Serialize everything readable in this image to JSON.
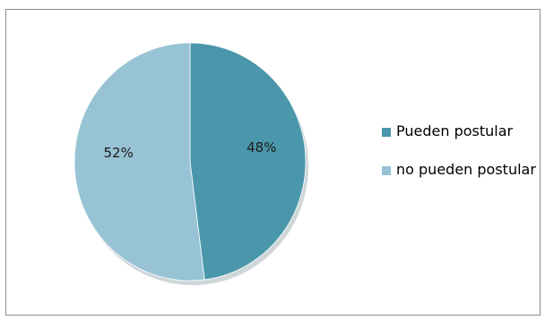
{
  "chart_data": {
    "type": "pie",
    "categories": [
      "Pueden postular",
      "no pueden postular"
    ],
    "values": [
      48,
      52
    ],
    "labels": [
      "48%",
      "52%"
    ],
    "colors": [
      "#4a97ab",
      "#97c3d4"
    ],
    "legend_position": "right"
  },
  "legend": {
    "items": [
      {
        "label": "Pueden postular",
        "color": "#4a97ab"
      },
      {
        "label": "no pueden postular",
        "color": "#97c3d4"
      }
    ]
  }
}
